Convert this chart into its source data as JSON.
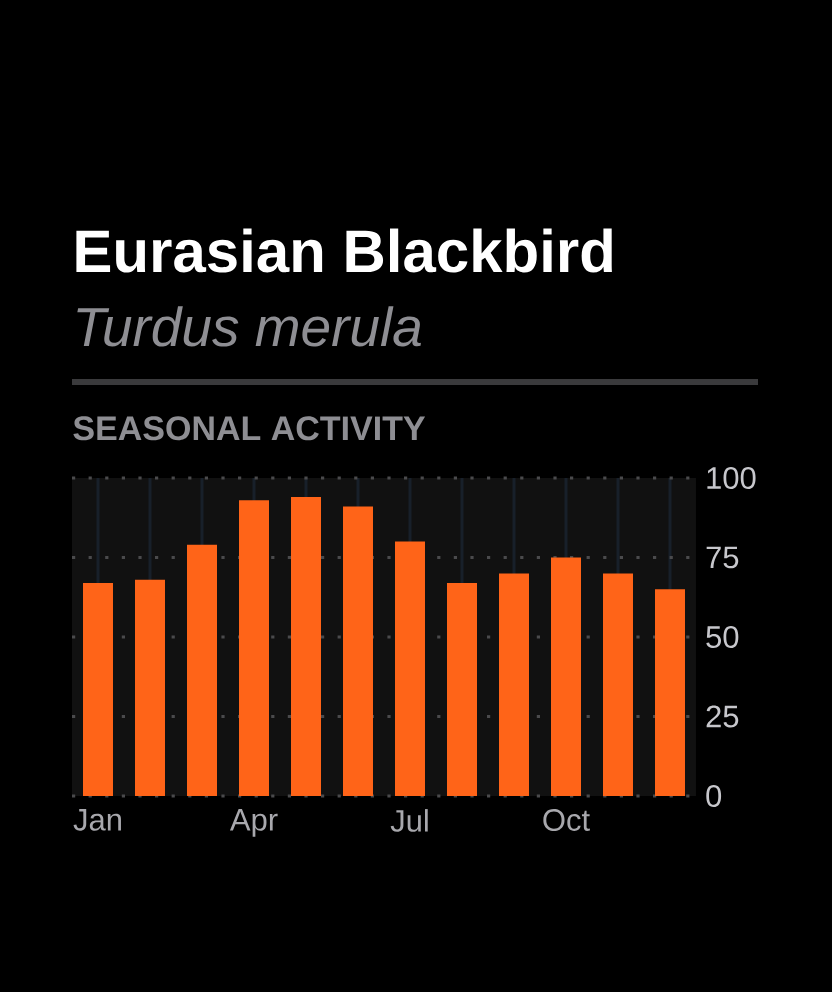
{
  "chart_data": {
    "type": "bar",
    "title": "Eurasian Blackbird",
    "subtitle": "Turdus merula",
    "annotations": [
      "SEASONAL ACTIVITY"
    ],
    "categories": [
      "Jan",
      null,
      null,
      "Apr",
      null,
      null,
      "Jul",
      null,
      null,
      "Oct",
      null,
      null
    ],
    "values": [
      67,
      68,
      79,
      93,
      94,
      91,
      80,
      67,
      70,
      75,
      70,
      65
    ],
    "color": "#ff6418",
    "ylim": [
      0,
      100
    ],
    "yticks": [
      0,
      25,
      50,
      75,
      100
    ],
    "grid": true
  }
}
